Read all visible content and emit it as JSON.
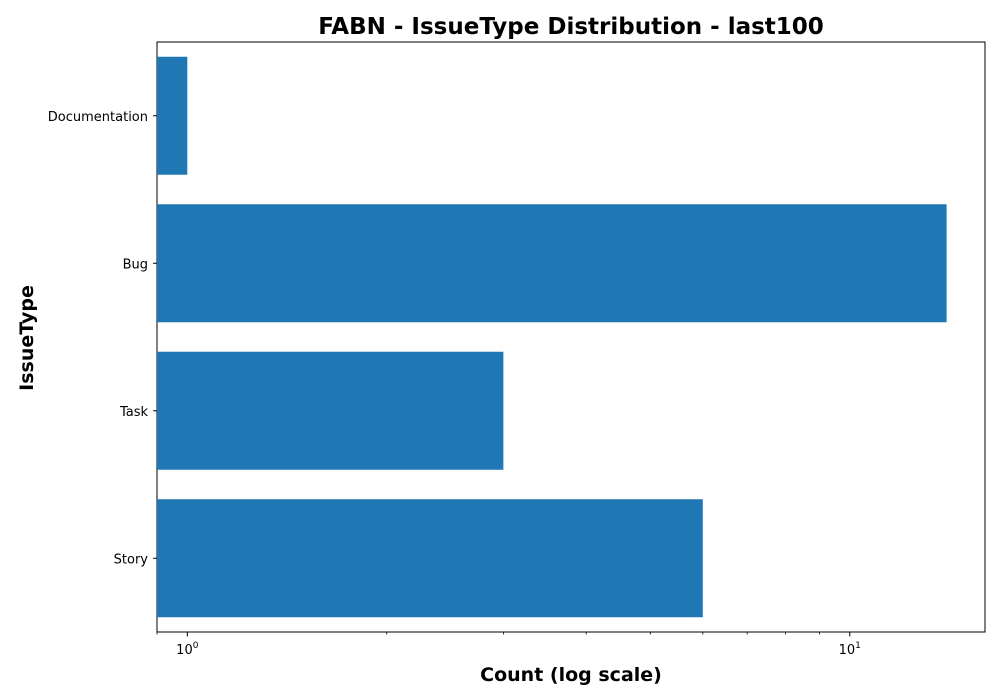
{
  "chart_data": {
    "type": "bar",
    "orientation": "horizontal",
    "title": "FABN - IssueType Distribution - last100",
    "xlabel": "Count (log scale)",
    "ylabel": "IssueType",
    "x_scale": "log",
    "xlim": [
      0.9,
      16
    ],
    "categories": [
      "Documentation",
      "Bug",
      "Task",
      "Story"
    ],
    "values": [
      1,
      14,
      3,
      6
    ],
    "x_ticks": [
      {
        "value": 1,
        "base": "10",
        "exp": "0"
      },
      {
        "value": 10,
        "base": "10",
        "exp": "1"
      }
    ],
    "bar_color": "#1f77b4",
    "grid": false,
    "legend": "none"
  }
}
